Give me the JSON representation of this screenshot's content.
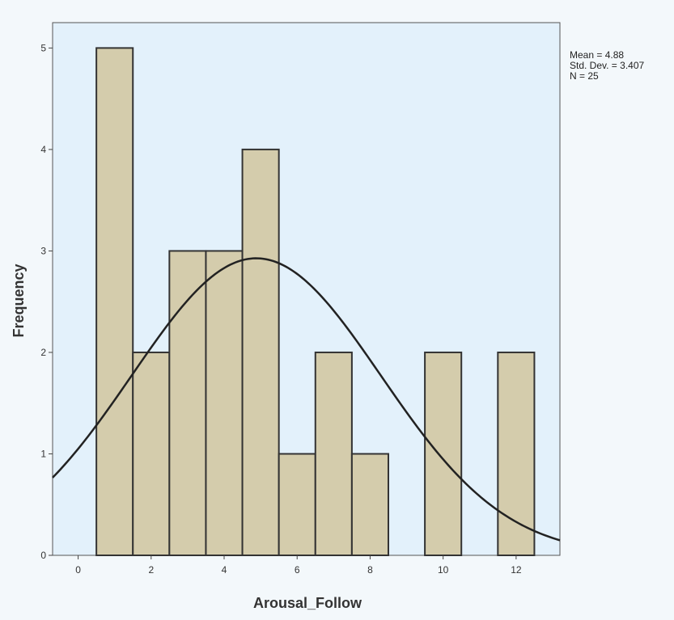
{
  "chart_data": {
    "type": "bar",
    "subtype": "histogram",
    "xlabel": "Arousal_Follow",
    "ylabel": "Frequency",
    "xlim": [
      -0.7,
      13.2
    ],
    "ylim": [
      0,
      5.25
    ],
    "xticks": [
      "0",
      "2",
      "4",
      "6",
      "8",
      "10",
      "12"
    ],
    "yticks": [
      "0",
      "1",
      "2",
      "3",
      "4",
      "5"
    ],
    "bins": [
      {
        "x": 1,
        "count": 5
      },
      {
        "x": 2,
        "count": 2
      },
      {
        "x": 3,
        "count": 3
      },
      {
        "x": 4,
        "count": 3
      },
      {
        "x": 5,
        "count": 4
      },
      {
        "x": 6,
        "count": 1
      },
      {
        "x": 7,
        "count": 2
      },
      {
        "x": 8,
        "count": 1
      },
      {
        "x": 10,
        "count": 2
      },
      {
        "x": 12,
        "count": 2
      }
    ],
    "bin_width": 1,
    "normal_curve": {
      "mean": 4.88,
      "std": 3.407,
      "n": 25
    },
    "stats_box": {
      "mean": "Mean = 4.88",
      "std": "Std. Dev. = 3.407",
      "n": "N = 25"
    },
    "colors": {
      "plot_bg": "#e3f1fb",
      "page_bg": "#f3f8fb",
      "bar_fill": "#d4ccac",
      "bar_stroke": "#333333",
      "curve": "#222222"
    }
  }
}
